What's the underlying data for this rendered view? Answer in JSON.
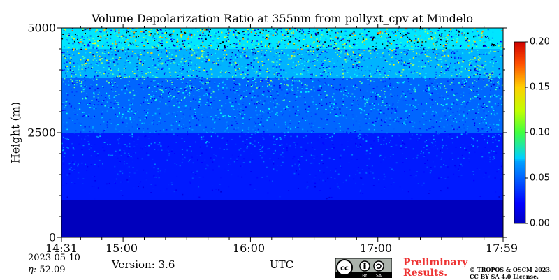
{
  "chart_data": {
    "type": "heatmap",
    "title": "Volume Depolarization Ratio at 355nm from pollyxt_cpv at Mindelo",
    "xlabel": "UTC",
    "ylabel": "Height (m)",
    "x_range": [
      "14:31",
      "17:59"
    ],
    "x_tick_labels": [
      "14:31",
      "15:00",
      "16:00",
      "17:00",
      "17:59"
    ],
    "y_range": [
      0,
      5000
    ],
    "y_tick_labels": [
      "0",
      "2500",
      "5000"
    ],
    "colorbar": {
      "min": 0.0,
      "max": 0.2,
      "tick_labels": [
        "0.00",
        "0.05",
        "0.10",
        "0.15",
        "0.20"
      ],
      "colormap": "jet"
    },
    "layers": [
      {
        "height_from": 0,
        "height_to": 900,
        "depol_ratio_approx": 0.012
      },
      {
        "height_from": 900,
        "height_to": 2500,
        "depol_ratio_approx": 0.03
      },
      {
        "height_from": 2500,
        "height_to": 3800,
        "depol_ratio_approx": 0.045
      },
      {
        "height_from": 3800,
        "height_to": 4500,
        "depol_ratio_approx": 0.06
      },
      {
        "height_from": 4500,
        "height_to": 5000,
        "depol_ratio_approx": 0.07,
        "noisy": true
      }
    ]
  },
  "footer": {
    "date": "2023-05-10",
    "eta_label": "η:",
    "eta_value": "52.09",
    "version": "Version: 3.6",
    "utc_label": "UTC",
    "preliminary_line1": "Preliminary",
    "preliminary_line2": "Results.",
    "copyright_line1": "© TROPOS & OSCM 2023.",
    "copyright_line2": "CC BY SA 4.0 License.",
    "license_icons": [
      "cc",
      "by",
      "sa"
    ],
    "prelim_color": "#ee3333"
  }
}
